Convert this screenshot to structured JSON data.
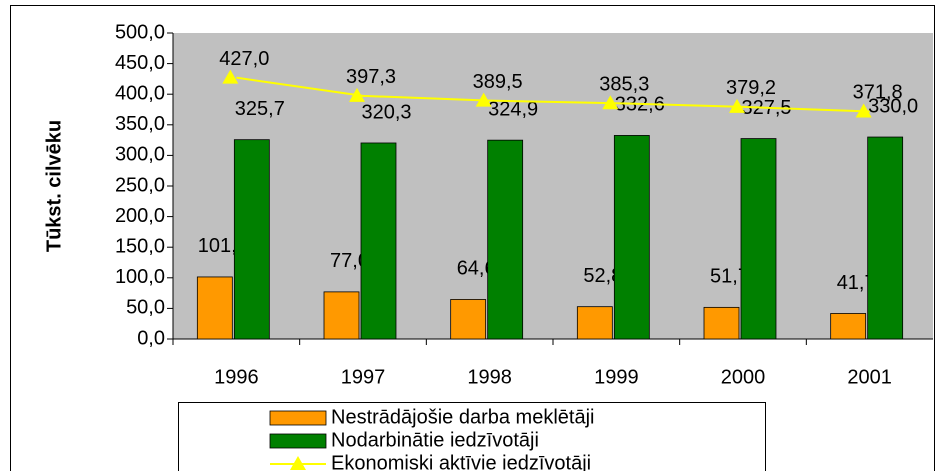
{
  "chart_data": {
    "type": "bar",
    "y_label": "Tūkst. cilvēku",
    "categories": [
      "1996",
      "1997",
      "1998",
      "1999",
      "2000",
      "2001"
    ],
    "series": [
      {
        "name": "Nestrādājošie darba meklētāji",
        "color": "#ff9900",
        "values": [
          101.4,
          77.0,
          64.6,
          52.8,
          51.7,
          41.7
        ],
        "value_labels": [
          "101,4",
          "77,0",
          "64,6",
          "52,8",
          "51,7",
          "41,7"
        ]
      },
      {
        "name": "Nodarbinātie iedzīvotāji",
        "color": "#008000",
        "values": [
          325.7,
          320.3,
          324.9,
          332.6,
          327.5,
          330.0
        ],
        "value_labels": [
          "325,7",
          "320,3",
          "324,9",
          "332,6",
          "327,5",
          "330,0"
        ]
      },
      {
        "name": "Ekonomiski aktīvie iedzīvotāji",
        "color": "#ffff00",
        "type": "line",
        "values": [
          427.0,
          397.3,
          389.5,
          385.3,
          379.2,
          371.8
        ],
        "value_labels": [
          "427,0",
          "397,3",
          "389,5",
          "385,3",
          "379,2",
          "371,8"
        ]
      }
    ],
    "ylim": [
      0,
      500
    ],
    "yticks": [
      {
        "value": 0,
        "label": "0,0"
      },
      {
        "value": 50,
        "label": "50,0"
      },
      {
        "value": 100,
        "label": "100,0"
      },
      {
        "value": 150,
        "label": "150,0"
      },
      {
        "value": 200,
        "label": "200,0"
      },
      {
        "value": 250,
        "label": "250,0"
      },
      {
        "value": 300,
        "label": "300,0"
      },
      {
        "value": 350,
        "label": "350,0"
      },
      {
        "value": 400,
        "label": "400,0"
      },
      {
        "value": 450,
        "label": "450,0"
      },
      {
        "value": 500,
        "label": "500,0"
      }
    ],
    "legend": "bottom"
  }
}
